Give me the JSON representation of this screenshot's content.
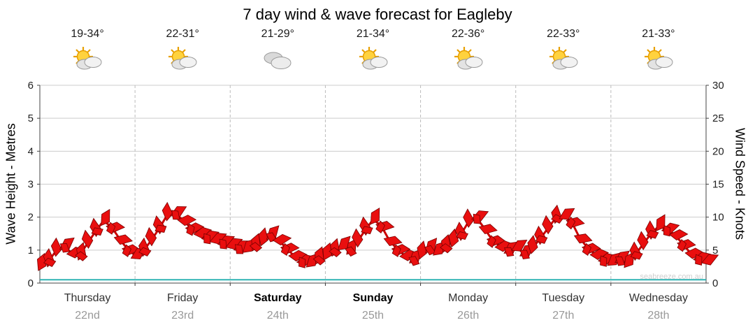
{
  "title": "7 day wind & wave forecast for Eagleby",
  "watermark": "seabreeze.com.au",
  "y_left": {
    "label": "Wave Height - Metres",
    "ticks": [
      0,
      1,
      2,
      3,
      4,
      5,
      6
    ]
  },
  "y_right": {
    "label": "Wind Speed - Knots",
    "ticks": [
      0,
      5,
      10,
      15,
      20,
      25,
      30
    ]
  },
  "days": [
    {
      "name": "Thursday",
      "date": "22nd",
      "temp": "19-34°",
      "icon": "sun-cloud",
      "weekend": false
    },
    {
      "name": "Friday",
      "date": "23rd",
      "temp": "22-31°",
      "icon": "sun-cloud",
      "weekend": false
    },
    {
      "name": "Saturday",
      "date": "24th",
      "temp": "21-29°",
      "icon": "cloud",
      "weekend": true
    },
    {
      "name": "Sunday",
      "date": "25th",
      "temp": "21-34°",
      "icon": "sun-cloud",
      "weekend": true
    },
    {
      "name": "Monday",
      "date": "26th",
      "temp": "22-36°",
      "icon": "sun-cloud",
      "weekend": false
    },
    {
      "name": "Tuesday",
      "date": "27th",
      "temp": "22-33°",
      "icon": "sun-cloud",
      "weekend": false
    },
    {
      "name": "Wednesday",
      "date": "28th",
      "temp": "21-33°",
      "icon": "sun-cloud",
      "weekend": false
    }
  ],
  "chart_data": {
    "type": "line",
    "title": "7 day wind & wave forecast for Eagleby",
    "categories": [
      "Thursday 22nd",
      "Friday 23rd",
      "Saturday 24th",
      "Sunday 25th",
      "Monday 26th",
      "Tuesday 27th",
      "Wednesday 28th"
    ],
    "ylabel_left": "Wave Height - Metres",
    "ylabel_right": "Wind Speed - Knots",
    "ylim_left": [
      0,
      6
    ],
    "ylim_right": [
      0,
      30
    ],
    "grid": true,
    "legend": "none",
    "series": [
      {
        "name": "Wind Speed",
        "axis": "right",
        "unit": "knots",
        "color": "#e90f0f",
        "values": [
          2.6,
          3.2,
          4.8,
          5.6,
          4.6,
          4.2,
          6.0,
          7.8,
          9.4,
          8.6,
          6.8,
          5.2,
          4.2,
          4.8,
          6.4,
          8.2,
          10.2,
          10.6,
          9.6,
          8.4,
          7.6,
          7.0,
          6.6,
          6.2,
          5.8,
          5.4,
          5.2,
          5.6,
          6.4,
          7.2,
          6.6,
          5.4,
          4.2,
          3.4,
          3.0,
          3.6,
          4.2,
          4.8,
          5.6,
          5.0,
          6.2,
          8.0,
          9.6,
          8.8,
          6.6,
          5.2,
          4.2,
          3.6,
          4.4,
          5.2,
          4.8,
          5.4,
          6.2,
          7.2,
          9.2,
          10.0,
          8.4,
          6.6,
          5.6,
          5.0,
          5.4,
          4.6,
          5.2,
          6.6,
          8.2,
          9.8,
          10.2,
          9.4,
          7.0,
          5.4,
          4.4,
          3.6,
          3.2,
          3.6,
          3.0,
          4.2,
          5.8,
          7.4,
          8.6,
          8.2,
          7.4,
          6.0,
          4.6,
          3.8,
          3.4
        ]
      },
      {
        "name": "Wave Height",
        "axis": "left",
        "unit": "metres",
        "color": "#2fb3b3",
        "values": [
          0.1,
          0.1,
          0.1,
          0.1,
          0.1,
          0.1,
          0.1,
          0.1,
          0.1,
          0.1,
          0.1,
          0.1,
          0.1,
          0.1,
          0.1
        ]
      }
    ]
  }
}
